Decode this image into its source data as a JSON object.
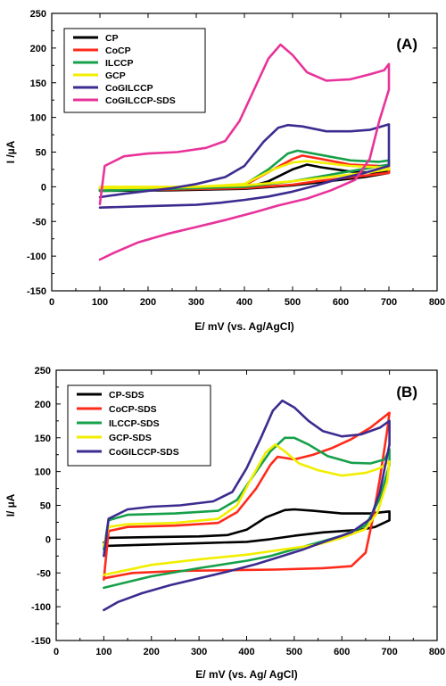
{
  "chart_data": [
    {
      "type": "line",
      "panel_label": "(A)",
      "xlabel": "E/ mV (vs. Ag/AgCl)",
      "ylabel": "I /µA",
      "xlim": [
        0,
        800
      ],
      "ylim": [
        -150,
        250
      ],
      "xticks": [
        0,
        100,
        200,
        300,
        400,
        500,
        600,
        700,
        800
      ],
      "yticks": [
        -150,
        -100,
        -50,
        0,
        50,
        100,
        150,
        200,
        250
      ],
      "grid": false,
      "legend_position": "top-left",
      "series": [
        {
          "name": "CP",
          "color": "#000000",
          "points": [
            [
              100,
              -5
            ],
            [
              300,
              -4
            ],
            [
              400,
              -2
            ],
            [
              450,
              8
            ],
            [
              500,
              25
            ],
            [
              530,
              32
            ],
            [
              560,
              28
            ],
            [
              620,
              22
            ],
            [
              680,
              20
            ],
            [
              700,
              24
            ],
            [
              700,
              20
            ],
            [
              650,
              14
            ],
            [
              600,
              10
            ],
            [
              550,
              6
            ],
            [
              500,
              2
            ],
            [
              400,
              -3
            ],
            [
              250,
              -5
            ],
            [
              100,
              -6
            ]
          ]
        },
        {
          "name": "CoCP",
          "color": "#ff2a1a",
          "points": [
            [
              100,
              -3
            ],
            [
              300,
              -2
            ],
            [
              400,
              2
            ],
            [
              460,
              25
            ],
            [
              500,
              40
            ],
            [
              520,
              45
            ],
            [
              560,
              40
            ],
            [
              620,
              32
            ],
            [
              680,
              30
            ],
            [
              700,
              30
            ],
            [
              700,
              20
            ],
            [
              650,
              16
            ],
            [
              600,
              12
            ],
            [
              550,
              8
            ],
            [
              500,
              3
            ],
            [
              400,
              -2
            ],
            [
              250,
              -4
            ],
            [
              100,
              -5
            ]
          ]
        },
        {
          "name": "ILCCP",
          "color": "#16a04a",
          "points": [
            [
              100,
              -4
            ],
            [
              300,
              -2
            ],
            [
              400,
              3
            ],
            [
              450,
              25
            ],
            [
              490,
              48
            ],
            [
              510,
              52
            ],
            [
              550,
              47
            ],
            [
              620,
              38
            ],
            [
              680,
              36
            ],
            [
              700,
              38
            ],
            [
              700,
              32
            ],
            [
              650,
              26
            ],
            [
              600,
              20
            ],
            [
              550,
              14
            ],
            [
              500,
              8
            ],
            [
              400,
              0
            ],
            [
              250,
              -3
            ],
            [
              100,
              -6
            ]
          ]
        },
        {
          "name": "GCP",
          "color": "#f2ee00",
          "points": [
            [
              100,
              0
            ],
            [
              300,
              0
            ],
            [
              400,
              4
            ],
            [
              460,
              25
            ],
            [
              500,
              35
            ],
            [
              530,
              37
            ],
            [
              570,
              34
            ],
            [
              620,
              30
            ],
            [
              680,
              28
            ],
            [
              700,
              28
            ],
            [
              700,
              25
            ],
            [
              650,
              20
            ],
            [
              600,
              16
            ],
            [
              550,
              12
            ],
            [
              500,
              8
            ],
            [
              400,
              2
            ],
            [
              250,
              -1
            ],
            [
              100,
              -2
            ]
          ]
        },
        {
          "name": "CoGILCCP",
          "color": "#3d2b8f",
          "points": [
            [
              100,
              -15
            ],
            [
              150,
              -10
            ],
            [
              200,
              -6
            ],
            [
              250,
              -2
            ],
            [
              300,
              4
            ],
            [
              360,
              14
            ],
            [
              400,
              30
            ],
            [
              440,
              65
            ],
            [
              470,
              85
            ],
            [
              490,
              89
            ],
            [
              520,
              87
            ],
            [
              570,
              80
            ],
            [
              620,
              80
            ],
            [
              660,
              82
            ],
            [
              700,
              90
            ],
            [
              700,
              30
            ],
            [
              650,
              20
            ],
            [
              600,
              12
            ],
            [
              550,
              2
            ],
            [
              500,
              -7
            ],
            [
              450,
              -14
            ],
            [
              400,
              -19
            ],
            [
              350,
              -23
            ],
            [
              300,
              -26
            ],
            [
              200,
              -28
            ],
            [
              100,
              -30
            ]
          ]
        },
        {
          "name": "CoGILCCP-SDS",
          "color": "#e8339a",
          "points": [
            [
              100,
              -25
            ],
            [
              110,
              30
            ],
            [
              150,
              44
            ],
            [
              200,
              48
            ],
            [
              260,
              50
            ],
            [
              320,
              56
            ],
            [
              360,
              66
            ],
            [
              390,
              95
            ],
            [
              420,
              140
            ],
            [
              450,
              185
            ],
            [
              475,
              205
            ],
            [
              500,
              190
            ],
            [
              530,
              165
            ],
            [
              570,
              153
            ],
            [
              620,
              155
            ],
            [
              660,
              162
            ],
            [
              690,
              168
            ],
            [
              700,
              177
            ],
            [
              700,
              140
            ],
            [
              680,
              95
            ],
            [
              660,
              40
            ],
            [
              630,
              10
            ],
            [
              580,
              -5
            ],
            [
              530,
              -17
            ],
            [
              470,
              -27
            ],
            [
              420,
              -37
            ],
            [
              360,
              -48
            ],
            [
              300,
              -58
            ],
            [
              240,
              -68
            ],
            [
              180,
              -80
            ],
            [
              130,
              -95
            ],
            [
              100,
              -105
            ]
          ]
        }
      ]
    },
    {
      "type": "line",
      "panel_label": "(B)",
      "xlabel": "E/ mV (vs. Ag/ AgCl)",
      "ylabel": "I/ µA",
      "xlim": [
        0,
        800
      ],
      "ylim": [
        -150,
        250
      ],
      "xticks": [
        0,
        100,
        200,
        300,
        400,
        500,
        600,
        700,
        800
      ],
      "yticks": [
        -150,
        -100,
        -50,
        0,
        50,
        100,
        150,
        200,
        250
      ],
      "grid": false,
      "legend_position": "top-left",
      "series": [
        {
          "name": "CP-SDS",
          "color": "#000000",
          "points": [
            [
              100,
              -5
            ],
            [
              110,
              2
            ],
            [
              200,
              3
            ],
            [
              300,
              4
            ],
            [
              360,
              6
            ],
            [
              400,
              14
            ],
            [
              440,
              32
            ],
            [
              480,
              43
            ],
            [
              500,
              44
            ],
            [
              540,
              42
            ],
            [
              600,
              38
            ],
            [
              660,
              38
            ],
            [
              700,
              41
            ],
            [
              700,
              28
            ],
            [
              670,
              18
            ],
            [
              640,
              14
            ],
            [
              600,
              12
            ],
            [
              560,
              10
            ],
            [
              500,
              5
            ],
            [
              450,
              0
            ],
            [
              400,
              -4
            ],
            [
              300,
              -6
            ],
            [
              200,
              -8
            ],
            [
              100,
              -10
            ]
          ]
        },
        {
          "name": "CoCP-SDS",
          "color": "#ff2a1a",
          "points": [
            [
              100,
              -60
            ],
            [
              110,
              12
            ],
            [
              150,
              18
            ],
            [
              250,
              20
            ],
            [
              340,
              24
            ],
            [
              380,
              40
            ],
            [
              420,
              75
            ],
            [
              450,
              110
            ],
            [
              465,
              122
            ],
            [
              500,
              118
            ],
            [
              540,
              125
            ],
            [
              580,
              135
            ],
            [
              620,
              148
            ],
            [
              660,
              165
            ],
            [
              700,
              187
            ],
            [
              695,
              160
            ],
            [
              680,
              90
            ],
            [
              665,
              30
            ],
            [
              650,
              -20
            ],
            [
              620,
              -40
            ],
            [
              560,
              -43
            ],
            [
              460,
              -45
            ],
            [
              360,
              -46
            ],
            [
              260,
              -47
            ],
            [
              160,
              -50
            ],
            [
              100,
              -58
            ]
          ]
        },
        {
          "name": "ILCCP-SDS",
          "color": "#16a04a",
          "points": [
            [
              100,
              -15
            ],
            [
              110,
              28
            ],
            [
              150,
              36
            ],
            [
              250,
              38
            ],
            [
              340,
              42
            ],
            [
              380,
              58
            ],
            [
              420,
              100
            ],
            [
              450,
              130
            ],
            [
              480,
              150
            ],
            [
              500,
              150
            ],
            [
              530,
              140
            ],
            [
              570,
              123
            ],
            [
              620,
              113
            ],
            [
              660,
              112
            ],
            [
              690,
              118
            ],
            [
              700,
              133
            ],
            [
              700,
              110
            ],
            [
              680,
              60
            ],
            [
              650,
              20
            ],
            [
              600,
              5
            ],
            [
              550,
              -5
            ],
            [
              500,
              -15
            ],
            [
              450,
              -25
            ],
            [
              400,
              -32
            ],
            [
              300,
              -43
            ],
            [
              200,
              -55
            ],
            [
              100,
              -72
            ]
          ]
        },
        {
          "name": "GCP-SDS",
          "color": "#f2ee00",
          "points": [
            [
              100,
              -10
            ],
            [
              110,
              18
            ],
            [
              150,
              22
            ],
            [
              250,
              24
            ],
            [
              340,
              30
            ],
            [
              380,
              50
            ],
            [
              410,
              90
            ],
            [
              440,
              128
            ],
            [
              460,
              140
            ],
            [
              480,
              130
            ],
            [
              510,
              112
            ],
            [
              550,
              102
            ],
            [
              600,
              94
            ],
            [
              650,
              98
            ],
            [
              680,
              105
            ],
            [
              700,
              115
            ],
            [
              695,
              85
            ],
            [
              675,
              40
            ],
            [
              650,
              15
            ],
            [
              600,
              2
            ],
            [
              550,
              -8
            ],
            [
              500,
              -13
            ],
            [
              450,
              -18
            ],
            [
              400,
              -23
            ],
            [
              300,
              -30
            ],
            [
              200,
              -38
            ],
            [
              100,
              -53
            ]
          ]
        },
        {
          "name": "CoGILCCP-SDS",
          "color": "#3d2b8f",
          "points": [
            [
              100,
              -25
            ],
            [
              110,
              30
            ],
            [
              150,
              44
            ],
            [
              200,
              48
            ],
            [
              260,
              50
            ],
            [
              330,
              56
            ],
            [
              370,
              70
            ],
            [
              400,
              105
            ],
            [
              430,
              150
            ],
            [
              455,
              190
            ],
            [
              475,
              205
            ],
            [
              500,
              195
            ],
            [
              530,
              175
            ],
            [
              560,
              160
            ],
            [
              600,
              152
            ],
            [
              640,
              155
            ],
            [
              680,
              165
            ],
            [
              700,
              175
            ],
            [
              700,
              140
            ],
            [
              680,
              70
            ],
            [
              660,
              30
            ],
            [
              620,
              10
            ],
            [
              570,
              -2
            ],
            [
              520,
              -15
            ],
            [
              470,
              -26
            ],
            [
              420,
              -37
            ],
            [
              360,
              -48
            ],
            [
              300,
              -58
            ],
            [
              240,
              -68
            ],
            [
              180,
              -80
            ],
            [
              130,
              -93
            ],
            [
              100,
              -105
            ]
          ]
        }
      ]
    }
  ]
}
